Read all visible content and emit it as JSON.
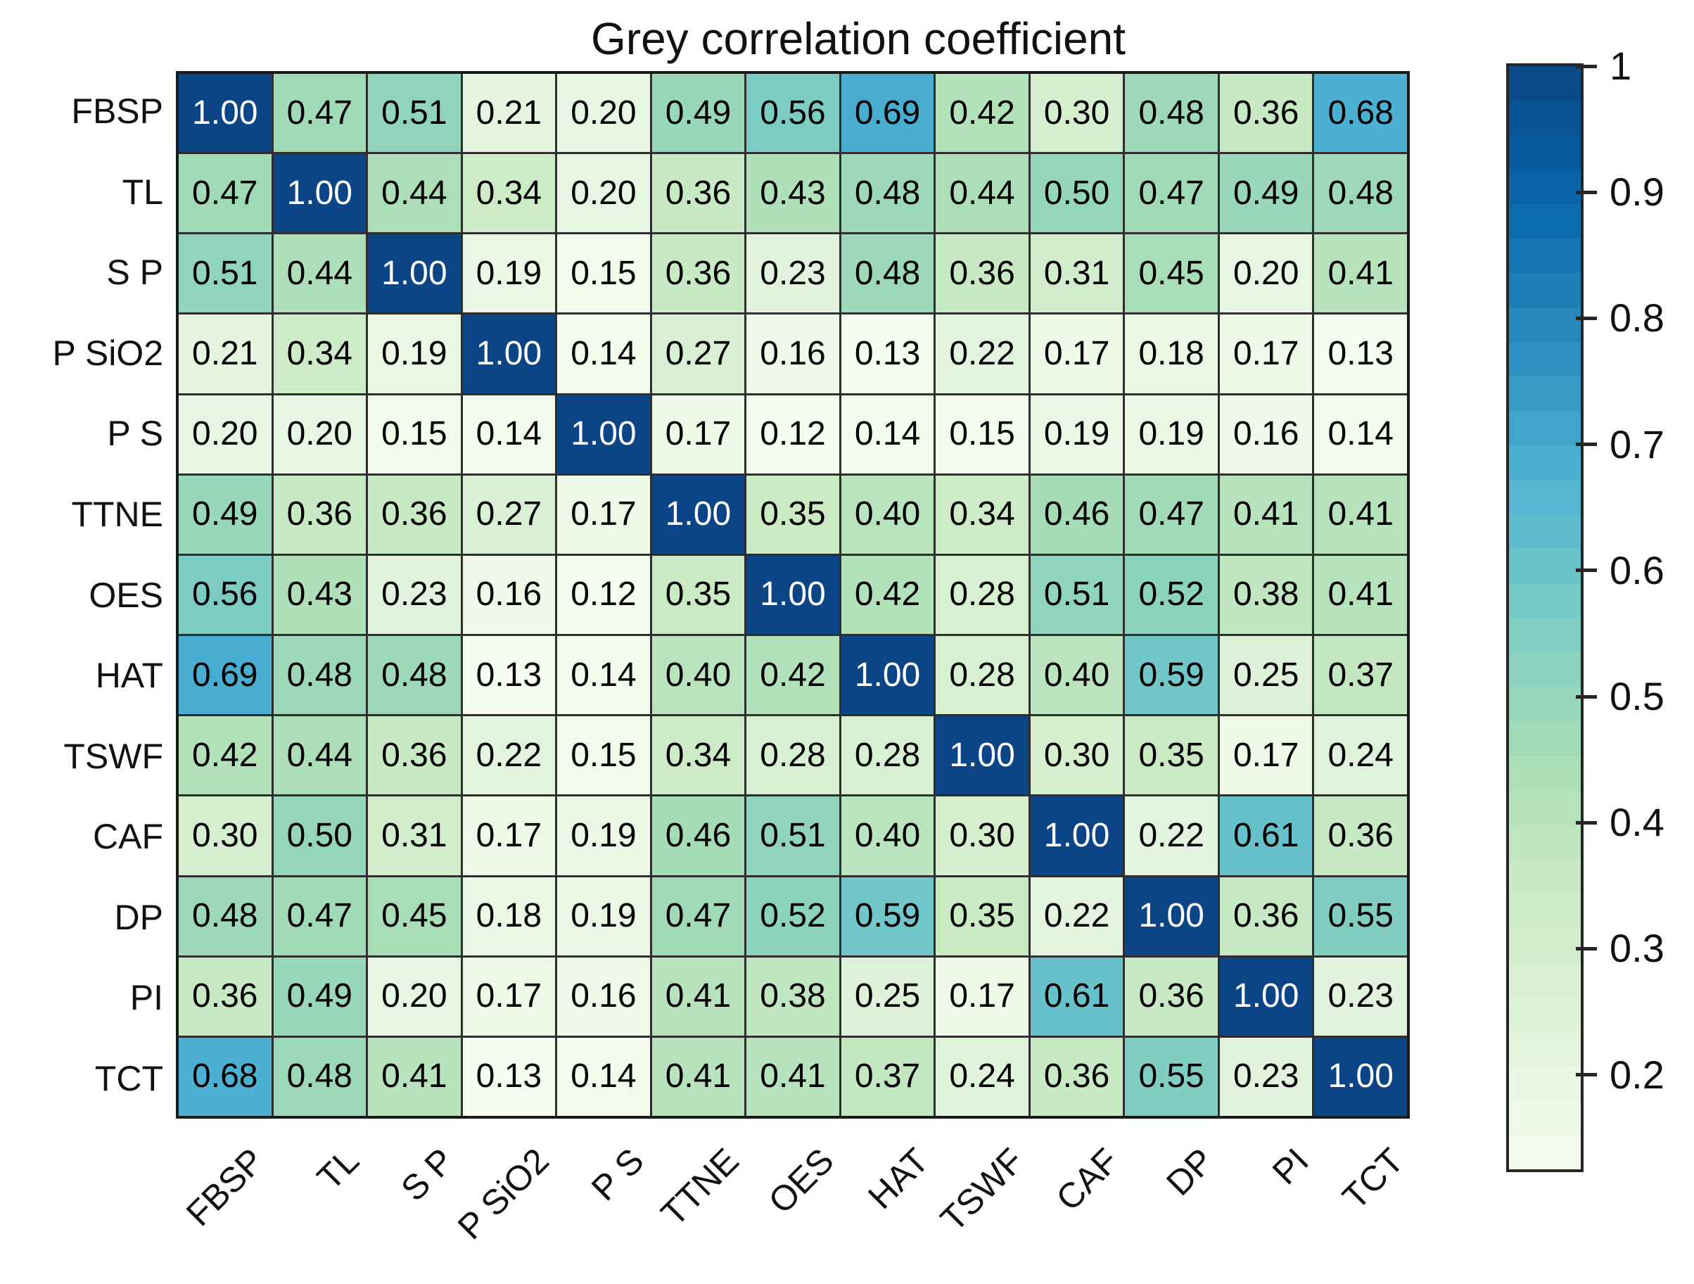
{
  "chart_data": {
    "type": "heatmap",
    "title": "Grey correlation coefficient",
    "categories": [
      "FBSP",
      "TL",
      "S P",
      "P SiO2",
      "P S",
      "TTNE",
      "OES",
      "HAT",
      "TSWF",
      "CAF",
      "DP",
      "PI",
      "TCT"
    ],
    "matrix": [
      [
        1.0,
        0.47,
        0.51,
        0.21,
        0.2,
        0.49,
        0.56,
        0.69,
        0.42,
        0.3,
        0.48,
        0.36,
        0.68
      ],
      [
        0.47,
        1.0,
        0.44,
        0.34,
        0.2,
        0.36,
        0.43,
        0.48,
        0.44,
        0.5,
        0.47,
        0.49,
        0.48
      ],
      [
        0.51,
        0.44,
        1.0,
        0.19,
        0.15,
        0.36,
        0.23,
        0.48,
        0.36,
        0.31,
        0.45,
        0.2,
        0.41
      ],
      [
        0.21,
        0.34,
        0.19,
        1.0,
        0.14,
        0.27,
        0.16,
        0.13,
        0.22,
        0.17,
        0.18,
        0.17,
        0.13
      ],
      [
        0.2,
        0.2,
        0.15,
        0.14,
        1.0,
        0.17,
        0.12,
        0.14,
        0.15,
        0.19,
        0.19,
        0.16,
        0.14
      ],
      [
        0.49,
        0.36,
        0.36,
        0.27,
        0.17,
        1.0,
        0.35,
        0.4,
        0.34,
        0.46,
        0.47,
        0.41,
        0.41
      ],
      [
        0.56,
        0.43,
        0.23,
        0.16,
        0.12,
        0.35,
        1.0,
        0.42,
        0.28,
        0.51,
        0.52,
        0.38,
        0.41
      ],
      [
        0.69,
        0.48,
        0.48,
        0.13,
        0.14,
        0.4,
        0.42,
        1.0,
        0.28,
        0.4,
        0.59,
        0.25,
        0.37
      ],
      [
        0.42,
        0.44,
        0.36,
        0.22,
        0.15,
        0.34,
        0.28,
        0.28,
        1.0,
        0.3,
        0.35,
        0.17,
        0.24
      ],
      [
        0.3,
        0.5,
        0.31,
        0.17,
        0.19,
        0.46,
        0.51,
        0.4,
        0.3,
        1.0,
        0.22,
        0.61,
        0.36
      ],
      [
        0.48,
        0.47,
        0.45,
        0.18,
        0.19,
        0.47,
        0.52,
        0.59,
        0.35,
        0.22,
        1.0,
        0.36,
        0.55
      ],
      [
        0.36,
        0.49,
        0.2,
        0.17,
        0.16,
        0.41,
        0.38,
        0.25,
        0.17,
        0.61,
        0.36,
        1.0,
        0.23
      ],
      [
        0.68,
        0.48,
        0.41,
        0.13,
        0.14,
        0.41,
        0.41,
        0.37,
        0.24,
        0.36,
        0.55,
        0.23,
        1.0
      ]
    ],
    "cell_value_decimals": 2,
    "colorbar": {
      "position": "right",
      "tick_labels": [
        "1",
        "0.9",
        "0.8",
        "0.7",
        "0.6",
        "0.5",
        "0.4",
        "0.3",
        "0.2"
      ],
      "tick_values": [
        1,
        0.9,
        0.8,
        0.7,
        0.6,
        0.5,
        0.4,
        0.3,
        0.2
      ],
      "vmin": 0.125,
      "vmax": 1.0,
      "steps": 32
    },
    "colormap_stops": [
      "#f7fcf0",
      "#e0f3db",
      "#ccebc5",
      "#a8ddb5",
      "#7bccc4",
      "#4eb3d3",
      "#2b8cbe",
      "#0868ac",
      "#0c4586"
    ],
    "grid_line_color": "#2e2e2e",
    "outer_border_color": "#1a1a1a",
    "cell_text_color_light_bg": "#000000",
    "cell_text_color_dark_bg": "#ffffff",
    "axis_text_color": "#111111"
  }
}
